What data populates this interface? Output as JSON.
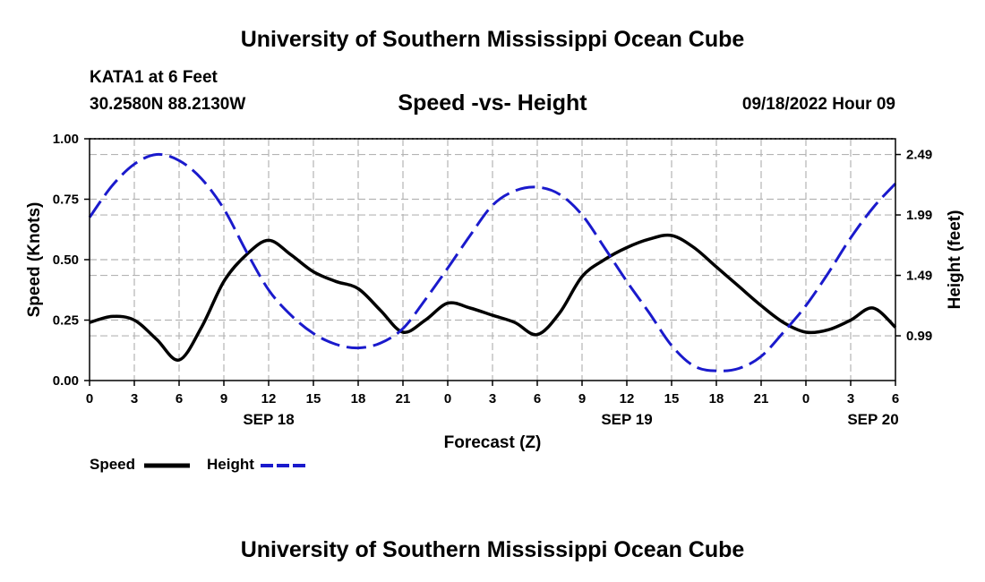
{
  "page": {
    "top_title": "University of Southern Mississippi Ocean Cube",
    "bottom_title": "University of Southern Mississippi Ocean Cube",
    "station": "KATA1 at 6 Feet",
    "coordinates": "30.2580N  88.2130W",
    "subtitle": "Speed -vs- Height",
    "datetime": "09/18/2022 Hour 09"
  },
  "legend": {
    "speed_label": "Speed",
    "height_label": "Height"
  },
  "chart_data": {
    "type": "line",
    "title": "Speed -vs- Height",
    "xlabel": "Forecast (Z)",
    "ylabel_left": "Speed (Knots)",
    "ylabel_right": "Height (feet)",
    "xlim": [
      0,
      54
    ],
    "x_ticks": [
      0,
      3,
      6,
      9,
      12,
      15,
      18,
      21,
      24,
      27,
      30,
      33,
      36,
      39,
      42,
      45,
      48,
      51,
      54
    ],
    "x_tick_labels": [
      "0",
      "3",
      "6",
      "9",
      "12",
      "15",
      "18",
      "21",
      "0",
      "3",
      "6",
      "9",
      "12",
      "15",
      "18",
      "21",
      "0",
      "3",
      "6"
    ],
    "date_labels": [
      {
        "x": 12,
        "label": "SEP 18"
      },
      {
        "x": 36,
        "label": "SEP 19"
      },
      {
        "x": 52.5,
        "label": "SEP 20"
      }
    ],
    "left_axis": {
      "ylim": [
        0,
        1
      ],
      "ticks": [
        0,
        0.25,
        0.5,
        0.75,
        1.0
      ],
      "tick_labels": [
        "0.00",
        "0.25",
        "0.50",
        "0.75",
        "1.00"
      ]
    },
    "right_axis": {
      "ylim": [
        0.62,
        2.62
      ],
      "ticks": [
        0.99,
        1.49,
        1.99,
        2.49
      ],
      "tick_labels": [
        "0.99",
        "1.49",
        "1.99",
        "2.49"
      ]
    },
    "grid": true,
    "series": [
      {
        "name": "Speed",
        "axis": "left",
        "color": "#000000",
        "style": "solid",
        "x": [
          0,
          1.5,
          3,
          4.5,
          6,
          7.5,
          9,
          10.5,
          12,
          13.5,
          15,
          16.5,
          18,
          19.5,
          21,
          22.5,
          24,
          25.5,
          27,
          28.5,
          30,
          31.5,
          33,
          34.5,
          36,
          37.5,
          39,
          40.5,
          42,
          43.5,
          45,
          46.5,
          48,
          49.5,
          51,
          52.5,
          54
        ],
        "values": [
          0.24,
          0.265,
          0.25,
          0.17,
          0.085,
          0.22,
          0.41,
          0.52,
          0.58,
          0.52,
          0.45,
          0.41,
          0.38,
          0.29,
          0.2,
          0.25,
          0.32,
          0.3,
          0.27,
          0.24,
          0.19,
          0.28,
          0.43,
          0.5,
          0.55,
          0.585,
          0.6,
          0.55,
          0.47,
          0.39,
          0.31,
          0.24,
          0.2,
          0.21,
          0.25,
          0.3,
          0.22
        ]
      },
      {
        "name": "Height",
        "axis": "right",
        "color": "#1a1acc",
        "style": "dashed",
        "x": [
          0,
          1.5,
          3,
          4.5,
          6,
          7.5,
          9,
          10.5,
          12,
          13.5,
          15,
          16.5,
          18,
          19.5,
          21,
          22.5,
          24,
          25.5,
          27,
          28.5,
          30,
          31.5,
          33,
          34.5,
          36,
          37.5,
          39,
          40.5,
          42,
          43.5,
          45,
          46.5,
          48,
          49.5,
          51,
          52.5,
          54
        ],
        "values": [
          1.97,
          2.23,
          2.41,
          2.49,
          2.44,
          2.29,
          2.04,
          1.69,
          1.37,
          1.16,
          1.01,
          0.92,
          0.89,
          0.93,
          1.05,
          1.29,
          1.55,
          1.82,
          2.07,
          2.19,
          2.22,
          2.16,
          1.99,
          1.72,
          1.44,
          1.18,
          0.91,
          0.74,
          0.7,
          0.72,
          0.82,
          1.02,
          1.24,
          1.51,
          1.8,
          2.05,
          2.25
        ]
      }
    ]
  }
}
